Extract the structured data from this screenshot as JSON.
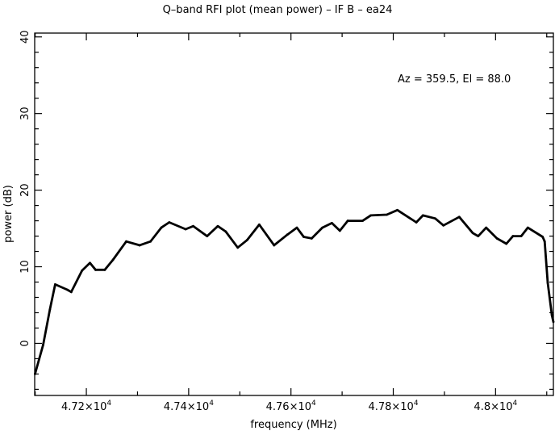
{
  "chart_data": {
    "type": "line",
    "title": "Q–band RFI plot (mean power) – IF B – ea24",
    "xlabel": "frequency (MHz)",
    "ylabel": "power (dB)",
    "annotation": "Az = 359.5, El = 88.0",
    "xlim": [
      47099,
      48113
    ],
    "ylim": [
      -6.8,
      40.5
    ],
    "grid": false,
    "line_color": "#000000",
    "x_ticks": [
      {
        "value": 47200,
        "mant": "4.72×10",
        "exp": "4"
      },
      {
        "value": 47400,
        "mant": "4.74×10",
        "exp": "4"
      },
      {
        "value": 47600,
        "mant": "4.76×10",
        "exp": "4"
      },
      {
        "value": 47800,
        "mant": "4.78×10",
        "exp": "4"
      },
      {
        "value": 48000,
        "mant": "4.8×10",
        "exp": "4"
      }
    ],
    "y_ticks": [
      {
        "value": 0,
        "label": "0"
      },
      {
        "value": 10,
        "label": "10"
      },
      {
        "value": 20,
        "label": "20"
      },
      {
        "value": 30,
        "label": "30"
      },
      {
        "value": 40,
        "label": "40"
      }
    ],
    "series": [
      {
        "x": [
          47099.7,
          47115.5,
          47128.7,
          47139,
          47162.7,
          47170.5,
          47191.6,
          47207,
          47218,
          47236,
          47252,
          47278,
          47304,
          47325.5,
          47346.5,
          47362,
          47394,
          47409,
          47436,
          47457,
          47472.5,
          47496,
          47514.5,
          47538,
          47567,
          47593,
          47611.5,
          47625,
          47640.5,
          47661.4,
          47680,
          47695.6,
          47711,
          47740,
          47756,
          47787.4,
          47808,
          47845,
          47858,
          47882,
          47898,
          47929,
          47955.5,
          47966,
          47981.6,
          48002.6,
          48021,
          48034,
          48050,
          48063,
          48092,
          48096,
          48102,
          48110,
          48113
        ],
        "y": [
          -4.0,
          -0.2,
          4.4,
          7.7,
          7.0,
          6.7,
          9.5,
          10.5,
          9.6,
          9.6,
          10.9,
          13.3,
          12.8,
          13.3,
          15.1,
          15.8,
          14.9,
          15.3,
          14.0,
          15.3,
          14.6,
          12.5,
          13.5,
          15.5,
          12.8,
          14.2,
          15.1,
          13.9,
          13.7,
          15.1,
          15.7,
          14.7,
          16.0,
          16.0,
          16.7,
          16.8,
          17.4,
          15.8,
          16.7,
          16.3,
          15.4,
          16.5,
          14.4,
          14.0,
          15.1,
          13.7,
          13.0,
          14.0,
          14.0,
          15.1,
          13.9,
          13.3,
          7.9,
          3.7,
          2.8
        ]
      }
    ]
  }
}
